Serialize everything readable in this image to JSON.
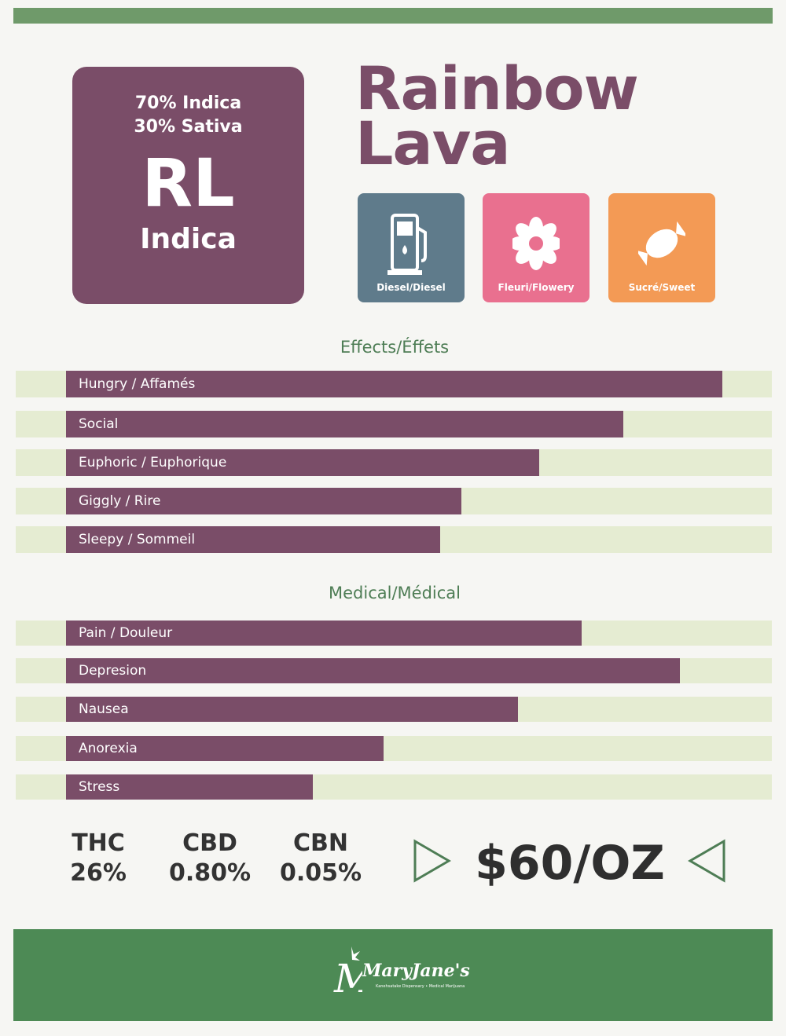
{
  "header": {
    "ratio": [
      "70% Indica",
      "30% Sativa"
    ],
    "code": "RL",
    "type": "Indica",
    "name": [
      "Rainbow",
      "Lava"
    ]
  },
  "flavors": [
    {
      "label": "Diesel/Diesel",
      "color": "#5f7b8b"
    },
    {
      "label": "Fleuri/Flowery",
      "color": "#e9708f"
    },
    {
      "label": "Sucré/Sweet",
      "color": "#f39a55"
    }
  ],
  "effects": {
    "title": "Effects/Éffets",
    "items": [
      {
        "label": "Hungry / Affamés",
        "value": 93
      },
      {
        "label": "Social",
        "value": 79
      },
      {
        "label": "Euphoric / Euphorique",
        "value": 67
      },
      {
        "label": "Giggly / Rire",
        "value": 56
      },
      {
        "label": "Sleepy  / Sommeil",
        "value": 53
      }
    ]
  },
  "medical": {
    "title": "Medical/Médical",
    "items": [
      {
        "label": "Pain / Douleur",
        "value": 73
      },
      {
        "label": "Depresion",
        "value": 87
      },
      {
        "label": "Nausea",
        "value": 64
      },
      {
        "label": "Anorexia",
        "value": 45
      },
      {
        "label": "Stress",
        "value": 35
      }
    ]
  },
  "cannabinoids": [
    {
      "name": "THC",
      "value": "26%"
    },
    {
      "name": "CBD",
      "value": "0.80%"
    },
    {
      "name": "CBN",
      "value": "0.05%"
    }
  ],
  "price": "$60/OZ",
  "footer": {
    "brand": "MaryJane's",
    "tagline": "Kanehsatake Dispensary • Medical Marijuana"
  }
}
